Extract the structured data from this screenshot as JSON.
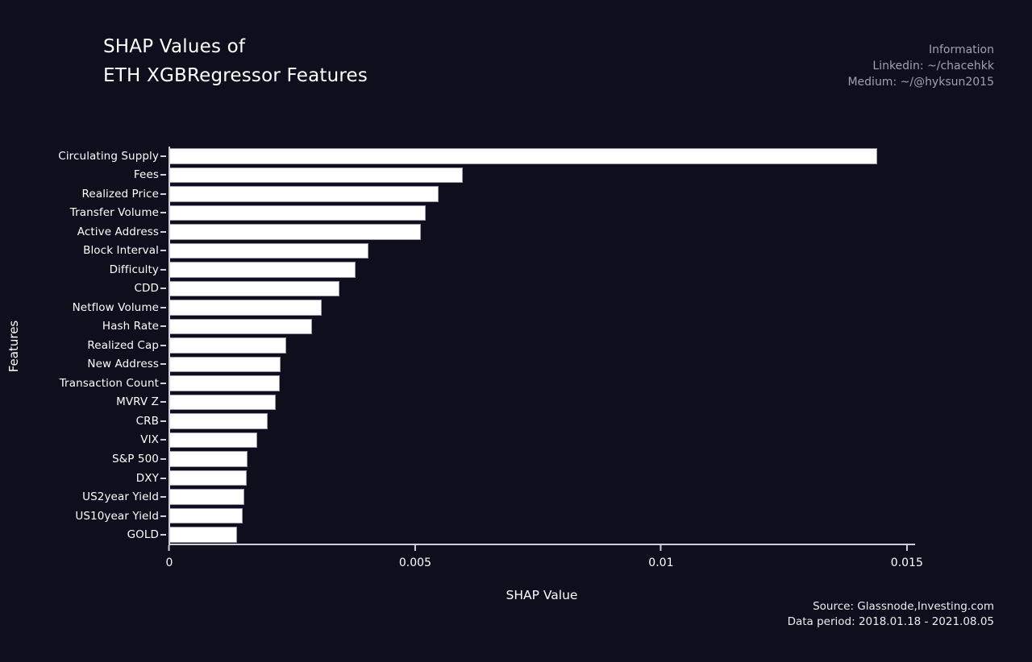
{
  "header": {
    "title_line1": "SHAP Values of",
    "title_line2": "ETH XGBRegressor Features",
    "info_lines": [
      "Information",
      "Linkedin: ~/chacehkk",
      "Medium: ~/@hyksun2015"
    ]
  },
  "footer": {
    "source_line": "Source: Glassnode,Investing.com",
    "period_line": "Data period: 2018.01.18 - 2021.08.05"
  },
  "chart_data": {
    "type": "bar",
    "orientation": "horizontal",
    "title": "SHAP Values of ETH XGBRegressor Features",
    "xlabel": "SHAP Value",
    "ylabel": "Features",
    "xlim": [
      0,
      0.01515
    ],
    "xticks": [
      0,
      0.005,
      0.01,
      0.015
    ],
    "xtick_labels": [
      "0",
      "0.005",
      "0.01",
      "0.015"
    ],
    "grid": false,
    "legend": "none",
    "categories": [
      "Circulating Supply",
      "Fees",
      "Realized Price",
      "Transfer Volume",
      "Active Address",
      "Block Interval",
      "Difficulty",
      "CDD",
      "Netflow Volume",
      "Hash Rate",
      "Realized Cap",
      "New Address",
      "Transaction Count",
      "MVRV Z",
      "CRB",
      "VIX",
      "S&P 500",
      "DXY",
      "US2year Yield",
      "US10year Yield",
      "GOLD"
    ],
    "values": [
      0.0144,
      0.00597,
      0.00548,
      0.00521,
      0.00512,
      0.00405,
      0.00379,
      0.00346,
      0.0031,
      0.0029,
      0.00238,
      0.00227,
      0.00225,
      0.00217,
      0.002,
      0.00179,
      0.00159,
      0.00158,
      0.00152,
      0.0015,
      0.00138
    ],
    "colors": {
      "background": "#0e0e1c",
      "bar_fill": "#ffffff",
      "bar_edge": "#9c9cb0",
      "axis": "#cfcfda",
      "text": "#ffffff",
      "muted_text": "#a2a2ad",
      "footer_text": "#ededf2"
    }
  }
}
